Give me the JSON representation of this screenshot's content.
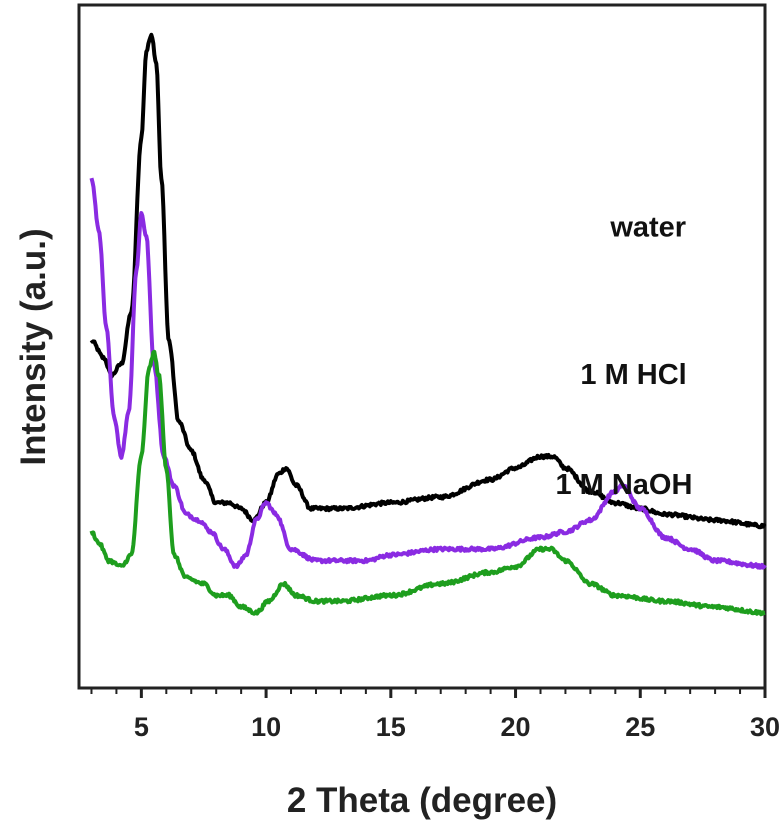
{
  "chart_data": {
    "type": "line",
    "xlabel": "2 Theta (degree)",
    "ylabel": "Intensity (a.u.)",
    "xlim": [
      2.5,
      30
    ],
    "xticks": [
      5,
      10,
      15,
      20,
      25,
      30
    ],
    "yticks_shown": false,
    "grid": false,
    "legend": "inline labels to the right of each trace",
    "series": [
      {
        "name": "water",
        "color": "#000000",
        "points": [
          [
            3.0,
            0.5
          ],
          [
            3.5,
            0.47
          ],
          [
            3.8,
            0.44
          ],
          [
            4.2,
            0.46
          ],
          [
            4.6,
            0.55
          ],
          [
            5.0,
            0.85
          ],
          [
            5.2,
            1.0
          ],
          [
            5.4,
            1.03
          ],
          [
            5.6,
            0.98
          ],
          [
            5.8,
            0.78
          ],
          [
            6.1,
            0.5
          ],
          [
            6.5,
            0.36
          ],
          [
            7.0,
            0.31
          ],
          [
            7.5,
            0.26
          ],
          [
            8.0,
            0.22
          ],
          [
            8.5,
            0.22
          ],
          [
            9.0,
            0.21
          ],
          [
            9.5,
            0.19
          ],
          [
            10.0,
            0.22
          ],
          [
            10.5,
            0.27
          ],
          [
            10.8,
            0.28
          ],
          [
            11.2,
            0.25
          ],
          [
            11.8,
            0.21
          ],
          [
            13,
            0.21
          ],
          [
            15,
            0.22
          ],
          [
            17,
            0.23
          ],
          [
            19,
            0.26
          ],
          [
            20,
            0.28
          ],
          [
            21,
            0.3
          ],
          [
            21.5,
            0.3
          ],
          [
            22,
            0.28
          ],
          [
            23,
            0.24
          ],
          [
            24,
            0.22
          ],
          [
            25,
            0.21
          ],
          [
            26,
            0.2
          ],
          [
            28,
            0.19
          ],
          [
            30,
            0.18
          ]
        ]
      },
      {
        "name": "1 M HCl",
        "color": "#8a2be2",
        "points": [
          [
            3.0,
            0.78
          ],
          [
            3.3,
            0.69
          ],
          [
            3.6,
            0.52
          ],
          [
            3.9,
            0.37
          ],
          [
            4.2,
            0.3
          ],
          [
            4.5,
            0.38
          ],
          [
            4.8,
            0.62
          ],
          [
            5.0,
            0.72
          ],
          [
            5.2,
            0.68
          ],
          [
            5.5,
            0.46
          ],
          [
            5.9,
            0.3
          ],
          [
            6.3,
            0.25
          ],
          [
            6.8,
            0.2
          ],
          [
            7.3,
            0.19
          ],
          [
            7.8,
            0.17
          ],
          [
            8.3,
            0.14
          ],
          [
            8.8,
            0.11
          ],
          [
            9.2,
            0.13
          ],
          [
            9.6,
            0.19
          ],
          [
            10.0,
            0.22
          ],
          [
            10.4,
            0.2
          ],
          [
            11,
            0.14
          ],
          [
            12,
            0.12
          ],
          [
            13,
            0.12
          ],
          [
            14,
            0.12
          ],
          [
            15,
            0.13
          ],
          [
            17,
            0.14
          ],
          [
            19,
            0.14
          ],
          [
            21,
            0.16
          ],
          [
            22,
            0.17
          ],
          [
            23,
            0.19
          ],
          [
            24,
            0.24
          ],
          [
            24.3,
            0.25
          ],
          [
            25,
            0.21
          ],
          [
            26,
            0.16
          ],
          [
            27,
            0.14
          ],
          [
            28,
            0.12
          ],
          [
            30,
            0.11
          ]
        ]
      },
      {
        "name": "1 M NaOH",
        "color": "#1e9e1e",
        "points": [
          [
            3.0,
            0.17
          ],
          [
            3.3,
            0.15
          ],
          [
            3.7,
            0.12
          ],
          [
            4.2,
            0.11
          ],
          [
            4.6,
            0.13
          ],
          [
            5.0,
            0.3
          ],
          [
            5.3,
            0.45
          ],
          [
            5.5,
            0.48
          ],
          [
            5.7,
            0.44
          ],
          [
            6.0,
            0.28
          ],
          [
            6.3,
            0.13
          ],
          [
            6.8,
            0.09
          ],
          [
            7.5,
            0.08
          ],
          [
            8.0,
            0.06
          ],
          [
            8.5,
            0.06
          ],
          [
            9.0,
            0.04
          ],
          [
            9.6,
            0.03
          ],
          [
            10.1,
            0.05
          ],
          [
            10.7,
            0.08
          ],
          [
            11.2,
            0.06
          ],
          [
            12,
            0.05
          ],
          [
            13,
            0.05
          ],
          [
            15,
            0.06
          ],
          [
            17,
            0.08
          ],
          [
            19,
            0.1
          ],
          [
            20,
            0.11
          ],
          [
            21,
            0.14
          ],
          [
            21.4,
            0.14
          ],
          [
            22,
            0.12
          ],
          [
            23,
            0.08
          ],
          [
            24,
            0.06
          ],
          [
            26,
            0.05
          ],
          [
            28,
            0.04
          ],
          [
            30,
            0.03
          ]
        ]
      }
    ],
    "annotations": [
      {
        "series": "water",
        "text": "water",
        "at": [
          23.8,
          0.68
        ]
      },
      {
        "series": "1 M HCl",
        "text": "1 M HCl",
        "at": [
          22.6,
          0.425
        ]
      },
      {
        "series": "1 M NaOH",
        "text": "1 M NaOH",
        "at": [
          21.6,
          0.235
        ]
      }
    ]
  }
}
